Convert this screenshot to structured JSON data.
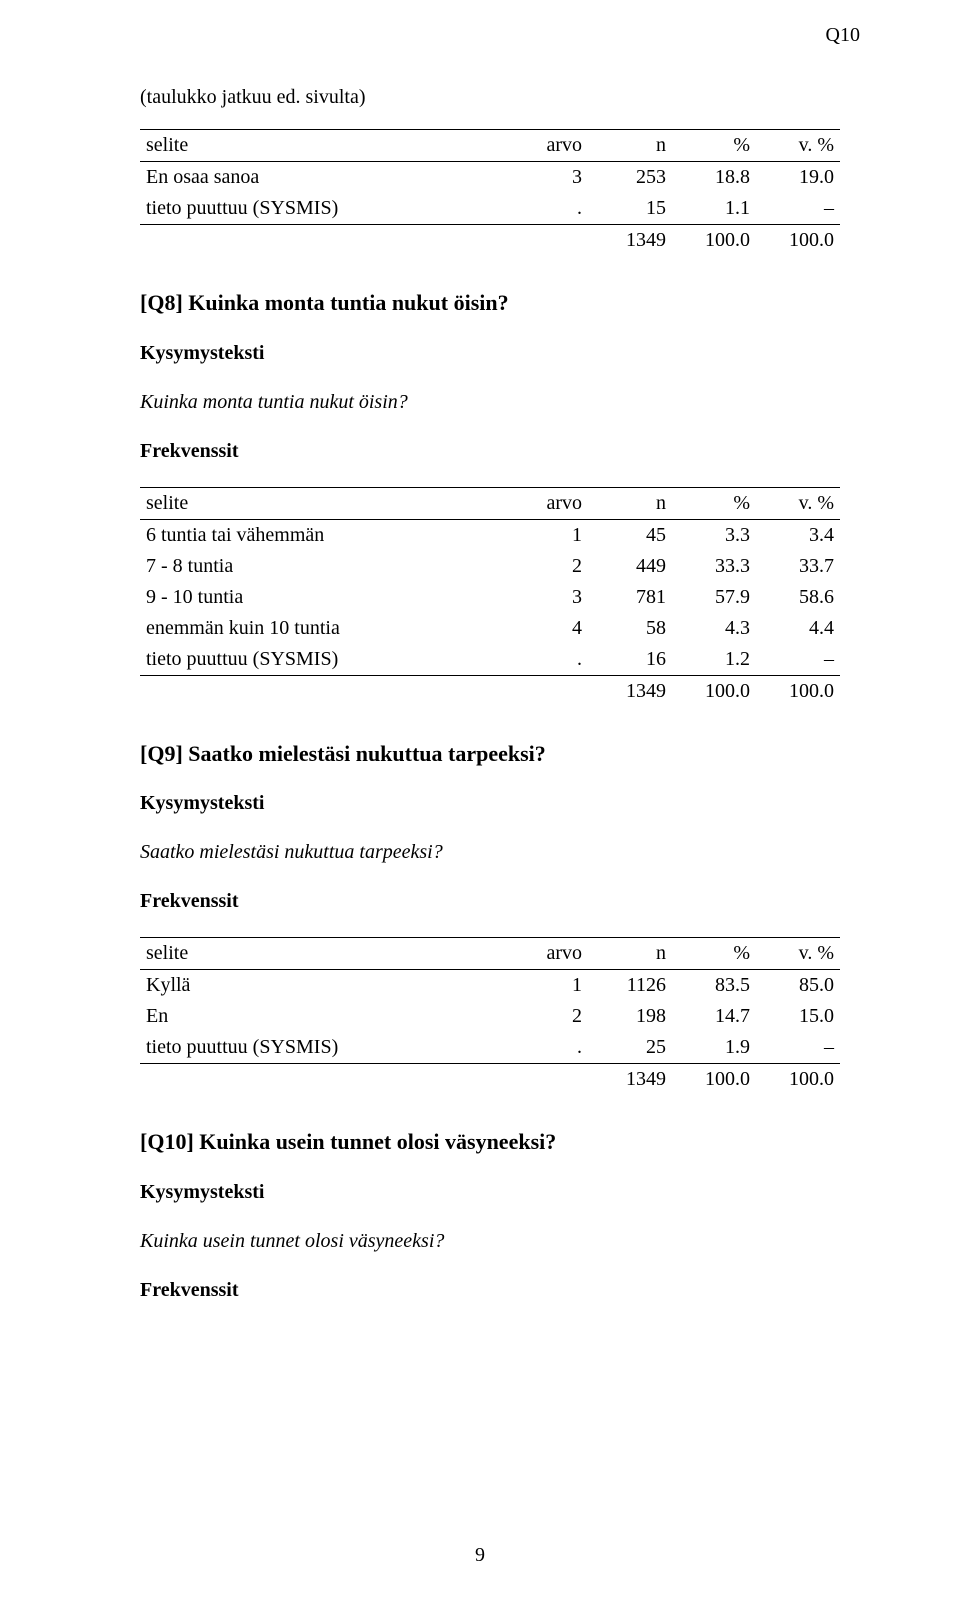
{
  "top_label": "Q10",
  "continuation_note": "(taulukko jatkuu ed. sivulta)",
  "headers": {
    "label": "selite",
    "arvo": "arvo",
    "n": "n",
    "pct": "%",
    "vpct": "v. %"
  },
  "table_cont": {
    "rows": [
      {
        "label": "En osaa sanoa",
        "arvo": "3",
        "n": "253",
        "pct": "18.8",
        "vpct": "19.0"
      },
      {
        "label": "tieto puuttuu (SYSMIS)",
        "arvo": ".",
        "n": "15",
        "pct": "1.1",
        "vpct": "–"
      }
    ],
    "total": {
      "label": "",
      "arvo": "",
      "n": "1349",
      "pct": "100.0",
      "vpct": "100.0"
    }
  },
  "q8": {
    "title": "[Q8] Kuinka monta tuntia nukut öisin?",
    "kysymysteksti_label": "Kysymysteksti",
    "kysymysteksti": "Kuinka monta tuntia nukut öisin?",
    "frekvenssit_label": "Frekvenssit",
    "rows": [
      {
        "label": "6 tuntia tai vähemmän",
        "arvo": "1",
        "n": "45",
        "pct": "3.3",
        "vpct": "3.4"
      },
      {
        "label": "7 - 8 tuntia",
        "arvo": "2",
        "n": "449",
        "pct": "33.3",
        "vpct": "33.7"
      },
      {
        "label": "9 - 10 tuntia",
        "arvo": "3",
        "n": "781",
        "pct": "57.9",
        "vpct": "58.6"
      },
      {
        "label": "enemmän kuin 10 tuntia",
        "arvo": "4",
        "n": "58",
        "pct": "4.3",
        "vpct": "4.4"
      },
      {
        "label": "tieto puuttuu (SYSMIS)",
        "arvo": ".",
        "n": "16",
        "pct": "1.2",
        "vpct": "–"
      }
    ],
    "total": {
      "label": "",
      "arvo": "",
      "n": "1349",
      "pct": "100.0",
      "vpct": "100.0"
    }
  },
  "q9": {
    "title": "[Q9] Saatko mielestäsi nukuttua tarpeeksi?",
    "kysymysteksti_label": "Kysymysteksti",
    "kysymysteksti": "Saatko mielestäsi nukuttua tarpeeksi?",
    "frekvenssit_label": "Frekvenssit",
    "rows": [
      {
        "label": "Kyllä",
        "arvo": "1",
        "n": "1126",
        "pct": "83.5",
        "vpct": "85.0"
      },
      {
        "label": "En",
        "arvo": "2",
        "n": "198",
        "pct": "14.7",
        "vpct": "15.0"
      },
      {
        "label": "tieto puuttuu (SYSMIS)",
        "arvo": ".",
        "n": "25",
        "pct": "1.9",
        "vpct": "–"
      }
    ],
    "total": {
      "label": "",
      "arvo": "",
      "n": "1349",
      "pct": "100.0",
      "vpct": "100.0"
    }
  },
  "q10": {
    "title": "[Q10] Kuinka usein tunnet olosi väsyneeksi?",
    "kysymysteksti_label": "Kysymysteksti",
    "kysymysteksti": "Kuinka usein tunnet olosi väsyneeksi?",
    "frekvenssit_label": "Frekvenssit"
  },
  "page_number": "9"
}
